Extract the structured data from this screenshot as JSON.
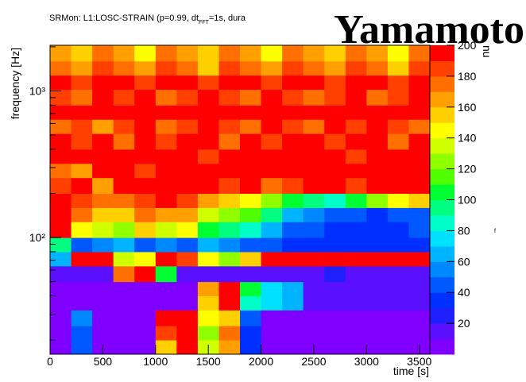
{
  "chart_data": {
    "type": "heatmap",
    "title": "SRMon: L1:LOSC-STRAIN (p=0.99,  dt",
    "title_subscript": "FFT",
    "title_rest": "=1s, dura",
    "watermark": "Yamamoto",
    "side_note": "f",
    "x_label": "time [s]",
    "y_label": "frequency [Hz]",
    "z_label": "nu",
    "log_y": true,
    "x": [
      0,
      200,
      400,
      600,
      800,
      1000,
      1200,
      1400,
      1600,
      1800,
      2000,
      2200,
      2400,
      2600,
      2800,
      3000,
      3200,
      3400,
      3600
    ],
    "y": [
      16,
      20,
      25,
      32,
      40,
      50,
      64,
      80,
      100,
      128,
      160,
      200,
      256,
      320,
      400,
      512,
      640,
      800,
      1024,
      1280,
      1600,
      2048
    ],
    "values": [
      [
        5,
        40,
        5,
        5,
        5,
        150,
        190,
        130,
        160,
        30,
        5,
        5,
        5,
        5,
        5,
        5,
        5,
        5
      ],
      [
        5,
        40,
        5,
        5,
        5,
        180,
        190,
        120,
        170,
        30,
        5,
        5,
        5,
        5,
        5,
        5,
        5,
        5
      ],
      [
        5,
        50,
        5,
        5,
        5,
        190,
        190,
        140,
        150,
        40,
        5,
        5,
        5,
        5,
        5,
        5,
        5,
        5
      ],
      [
        5,
        5,
        5,
        5,
        5,
        5,
        5,
        150,
        190,
        80,
        70,
        60,
        10,
        10,
        10,
        10,
        10,
        10
      ],
      [
        5,
        5,
        5,
        5,
        5,
        5,
        5,
        160,
        190,
        100,
        70,
        60,
        15,
        10,
        10,
        10,
        10,
        10
      ],
      [
        10,
        10,
        10,
        170,
        190,
        100,
        10,
        10,
        10,
        10,
        10,
        10,
        10,
        20,
        10,
        10,
        10,
        10
      ],
      [
        60,
        190,
        190,
        130,
        140,
        190,
        180,
        140,
        120,
        150,
        190,
        190,
        190,
        190,
        190,
        190,
        190,
        190
      ],
      [
        90,
        40,
        50,
        60,
        40,
        50,
        40,
        60,
        50,
        40,
        40,
        30,
        30,
        30,
        30,
        30,
        30,
        30
      ],
      [
        190,
        140,
        130,
        120,
        150,
        130,
        140,
        100,
        90,
        80,
        60,
        40,
        40,
        30,
        30,
        30,
        30,
        40
      ],
      [
        190,
        170,
        150,
        150,
        170,
        160,
        160,
        130,
        120,
        110,
        90,
        60,
        50,
        40,
        40,
        30,
        40,
        40
      ],
      [
        190,
        180,
        170,
        170,
        180,
        190,
        180,
        160,
        150,
        140,
        120,
        100,
        90,
        80,
        100,
        120,
        140,
        150
      ],
      [
        180,
        190,
        160,
        190,
        190,
        190,
        190,
        190,
        180,
        190,
        170,
        180,
        190,
        190,
        180,
        190,
        190,
        190
      ],
      [
        170,
        160,
        190,
        190,
        180,
        190,
        190,
        190,
        190,
        190,
        190,
        190,
        190,
        190,
        190,
        190,
        190,
        190
      ],
      [
        190,
        190,
        190,
        190,
        190,
        190,
        190,
        180,
        190,
        190,
        190,
        190,
        190,
        190,
        180,
        190,
        190,
        190
      ],
      [
        190,
        180,
        190,
        170,
        190,
        180,
        190,
        190,
        170,
        190,
        180,
        190,
        190,
        180,
        190,
        190,
        170,
        190
      ],
      [
        170,
        180,
        160,
        180,
        190,
        170,
        180,
        190,
        180,
        170,
        190,
        180,
        170,
        190,
        180,
        190,
        180,
        170
      ],
      [
        190,
        190,
        190,
        190,
        190,
        190,
        190,
        190,
        190,
        190,
        190,
        190,
        190,
        190,
        190,
        190,
        190,
        190
      ],
      [
        180,
        170,
        190,
        180,
        190,
        170,
        180,
        190,
        180,
        170,
        190,
        180,
        170,
        180,
        190,
        170,
        180,
        190
      ],
      [
        190,
        180,
        190,
        190,
        180,
        190,
        190,
        180,
        190,
        190,
        180,
        190,
        190,
        180,
        190,
        190,
        180,
        190
      ],
      [
        170,
        160,
        180,
        170,
        160,
        180,
        170,
        150,
        180,
        170,
        160,
        180,
        170,
        160,
        180,
        170,
        150,
        180
      ],
      [
        160,
        150,
        170,
        160,
        140,
        170,
        160,
        150,
        170,
        160,
        140,
        170,
        160,
        150,
        170,
        160,
        140,
        170
      ]
    ],
    "colors": [
      "#8000ff",
      "#5a10ff",
      "#2020ff",
      "#0030ff",
      "#0058ff",
      "#0088ff",
      "#00b4ff",
      "#00e0ff",
      "#00ffc8",
      "#00ff80",
      "#00ff30",
      "#50ff00",
      "#90ff00",
      "#d0ff00",
      "#ffff00",
      "#ffd000",
      "#ffa000",
      "#ff7000",
      "#ff4000",
      "#ff0000"
    ],
    "xlim": [
      0,
      3600
    ],
    "ylim": [
      16,
      2048
    ],
    "zlim": [
      0,
      200
    ],
    "xticks": [
      0,
      500,
      1000,
      1500,
      2000,
      2500,
      3000,
      3500
    ],
    "yticks": [
      {
        "value": 100,
        "label": "10²"
      },
      {
        "value": 1000,
        "label": "10³"
      }
    ],
    "yminorticks": [
      20,
      30,
      40,
      50,
      60,
      70,
      80,
      90,
      200,
      300,
      400,
      500,
      600,
      700,
      800,
      900,
      2000
    ],
    "zticks": [
      20,
      40,
      60,
      80,
      100,
      120,
      140,
      160,
      180,
      200
    ]
  }
}
